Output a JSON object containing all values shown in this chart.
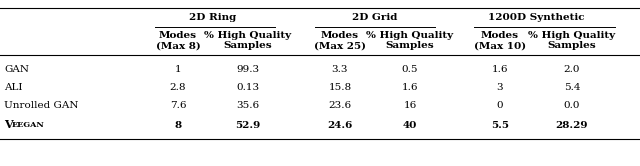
{
  "group_headers": [
    "2D Ring",
    "2D Grid",
    "1200D Synthetic"
  ],
  "col_subheaders": [
    [
      "Modes",
      "(Max 8)"
    ],
    [
      "% High Quality",
      "Samples"
    ],
    [
      "Modes",
      "(Max 25)"
    ],
    [
      "% High Quality",
      "Samples"
    ],
    [
      "Modes",
      "(Max 10)"
    ],
    [
      "% High Quality",
      "Samples"
    ]
  ],
  "row_labels": [
    "GAN",
    "ALI",
    "Unrolled GAN",
    "VEEGAN"
  ],
  "data": [
    [
      "1",
      "99.3",
      "3.3",
      "0.5",
      "1.6",
      "2.0"
    ],
    [
      "2.8",
      "0.13",
      "15.8",
      "1.6",
      "3",
      "5.4"
    ],
    [
      "7.6",
      "35.6",
      "23.6",
      "16",
      "0",
      "0.0"
    ],
    [
      "8",
      "52.9",
      "24.6",
      "40",
      "5.5",
      "28.29"
    ]
  ],
  "bold_last_row": true,
  "background_color": "#ffffff",
  "text_color": "#000000"
}
